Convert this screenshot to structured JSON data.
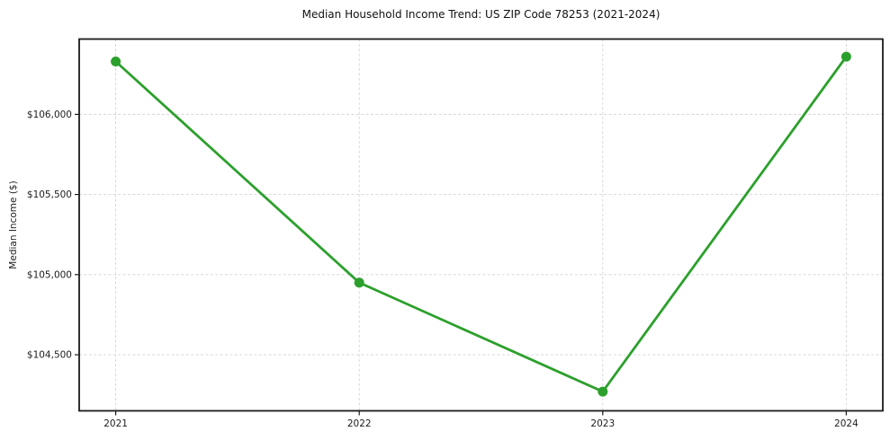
{
  "chart_data": {
    "type": "line",
    "title": "Median Household Income Trend: US ZIP Code 78253 (2021-2024)",
    "xlabel": "",
    "ylabel": "Median Income ($)",
    "categories": [
      "2021",
      "2022",
      "2023",
      "2024"
    ],
    "values": [
      106330,
      104950,
      104270,
      106360
    ],
    "yticks": [
      {
        "value": 104500,
        "label": "$104,500"
      },
      {
        "value": 105000,
        "label": "$105,000"
      },
      {
        "value": 105500,
        "label": "$105,500"
      },
      {
        "value": 106000,
        "label": "$106,000"
      }
    ],
    "ylim": [
      104150,
      106470
    ],
    "grid": true,
    "grid_style": "dashed",
    "legend": false,
    "colors": {
      "line": "#2ca02c",
      "marker": "#2ca02c",
      "grid": "#d4d4d4",
      "axis": "#1a1a1a",
      "text": "#1c1c1c",
      "background": "#ffffff"
    }
  }
}
